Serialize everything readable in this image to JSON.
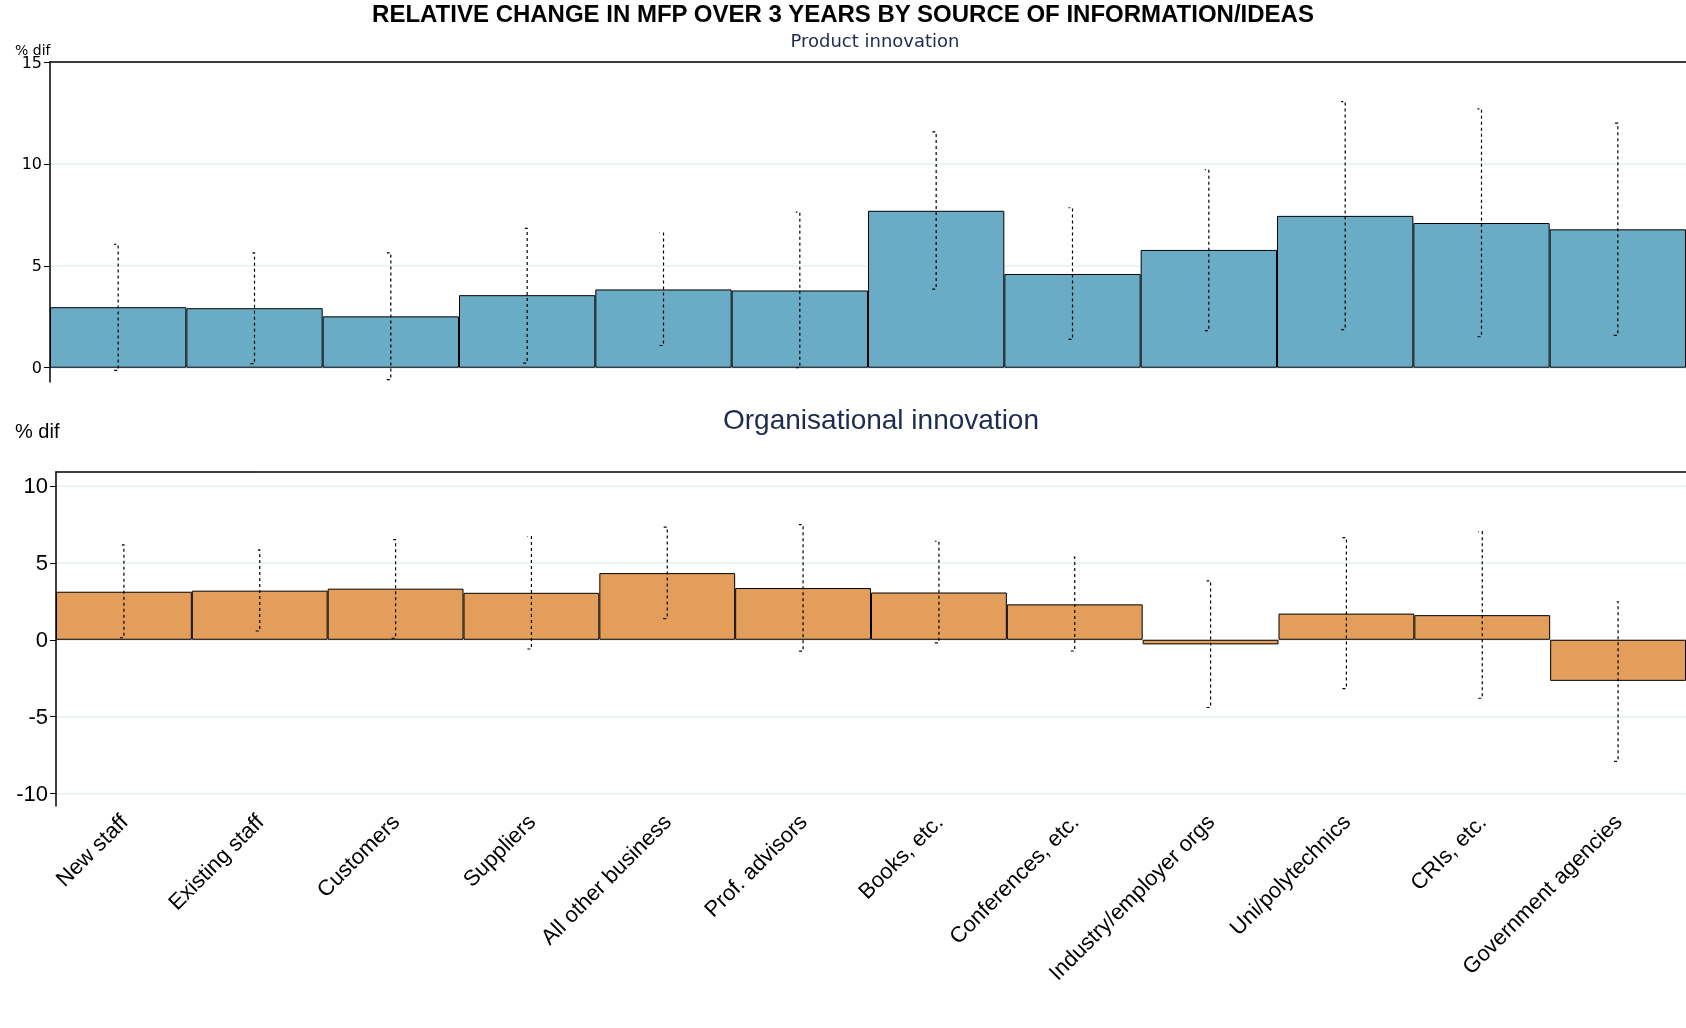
{
  "chart_data": [
    {
      "type": "bar",
      "title": "RELATIVE CHANGE IN MFP OVER 3 YEARS BY SOURCE OF INFORMATION/IDEAS",
      "subtitle": "Product innovation",
      "ylabel": "% dif",
      "categories": [
        null,
        null,
        null,
        null,
        null,
        null,
        null,
        null,
        null,
        null,
        null,
        null
      ],
      "values": [
        2.97,
        2.92,
        2.52,
        3.56,
        3.84,
        3.79,
        7.7,
        4.6,
        5.78,
        7.45,
        7.1,
        6.79
      ],
      "errors": [
        [
          -0.13,
          6.05
        ],
        [
          0.2,
          5.64
        ],
        [
          -0.58,
          5.64
        ],
        [
          0.23,
          6.84
        ],
        [
          1.09,
          6.61
        ],
        [
          0.0,
          7.63
        ],
        [
          3.86,
          11.57
        ],
        [
          1.39,
          7.85
        ],
        [
          1.82,
          9.72
        ],
        [
          1.87,
          13.06
        ],
        [
          1.52,
          12.7
        ],
        [
          1.59,
          12.0
        ]
      ],
      "color": "#6aacc5",
      "ylim": [
        -0.7,
        15
      ],
      "yticks": [
        0,
        5,
        10,
        15
      ],
      "grid": "y",
      "tick_labels": "y"
    },
    {
      "type": "bar",
      "title": "Organisational innovation",
      "ylabel": "% dif",
      "categories": [
        "New staff",
        "Existing staff",
        "Customers",
        "Suppliers",
        "All other business",
        "Prof. advisors",
        "Books, etc.",
        "Conferences, etc.",
        "Industry/employer orgs",
        "Uni/polytechnics",
        "CRIs, etc.",
        "Government agencies"
      ],
      "values": [
        3.12,
        3.19,
        3.32,
        3.05,
        4.33,
        3.36,
        3.07,
        2.3,
        -0.3,
        1.7,
        1.6,
        -2.67
      ],
      "errors": [
        [
          0.13,
          6.17
        ],
        [
          0.57,
          5.84
        ],
        [
          0.1,
          6.51
        ],
        [
          -0.6,
          6.71
        ],
        [
          1.38,
          7.32
        ],
        [
          -0.74,
          7.48
        ],
        [
          -0.2,
          6.4
        ],
        [
          -0.73,
          5.37
        ],
        [
          -4.4,
          3.83
        ],
        [
          -3.17,
          6.63
        ],
        [
          -3.8,
          7.03
        ],
        [
          -7.9,
          2.47
        ]
      ],
      "color": "#e39e5c",
      "ylim": [
        -10.8,
        10.9
      ],
      "yticks": [
        -10,
        -5,
        0,
        5,
        10
      ],
      "grid": "y"
    }
  ]
}
